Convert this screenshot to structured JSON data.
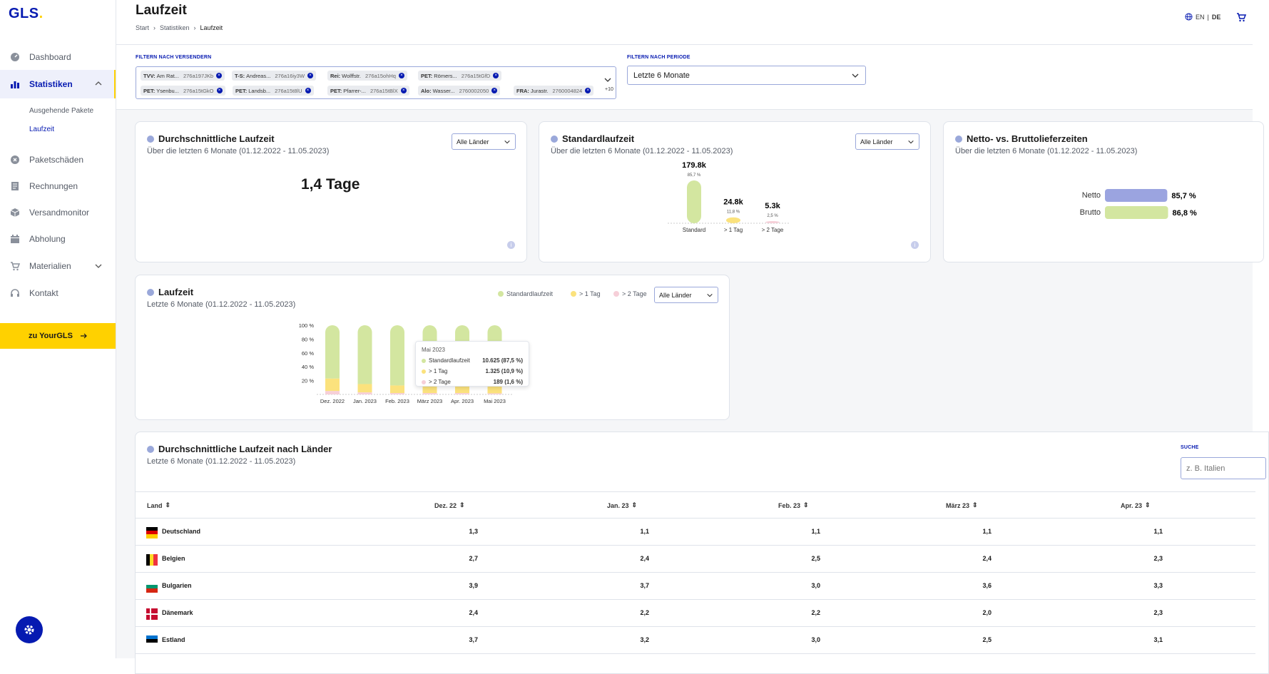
{
  "app": {
    "logo": "GLS",
    "page_title": "Laufzeit"
  },
  "breadcrumb": [
    "Start",
    "Statistiken",
    "Laufzeit"
  ],
  "header": {
    "lang_en": "EN",
    "lang_sep": "|",
    "lang_de": "DE"
  },
  "sidebar": {
    "items": [
      {
        "label": "Dashboard",
        "icon": "dashboard-icon"
      },
      {
        "label": "Statistiken",
        "icon": "bar-chart-icon"
      },
      {
        "label": "Paketschäden",
        "icon": "damage-icon"
      },
      {
        "label": "Rechnungen",
        "icon": "invoice-icon"
      },
      {
        "label": "Versandmonitor",
        "icon": "package-icon"
      },
      {
        "label": "Abholung",
        "icon": "calendar-icon"
      },
      {
        "label": "Materialien",
        "icon": "cart-icon"
      },
      {
        "label": "Kontakt",
        "icon": "headset-icon"
      }
    ],
    "subitems": [
      "Ausgehende Pakete",
      "Laufzeit"
    ],
    "cta": "zu YourGLS"
  },
  "filters": {
    "sender_label": "FILTERN NACH VERSENDERN",
    "period_label": "FILTERN NACH PERIODE",
    "period_value": "Letzte 6 Monate",
    "more": "+10",
    "chips": [
      {
        "prefix": "TVV:",
        "name": "Am Rat...",
        "id": "276a197JKb"
      },
      {
        "prefix": "T-S:",
        "name": "Andreas...",
        "id": "276a16iy3W"
      },
      {
        "prefix": "Rei:",
        "name": "Wolffstr.",
        "id": "276a15ohHq"
      },
      {
        "prefix": "PET:",
        "name": "Römers...",
        "id": "276a15tGfD"
      },
      {
        "prefix": "PET:",
        "name": "Ysenbu...",
        "id": "276a15tGkO"
      },
      {
        "prefix": "PET:",
        "name": "Landsb...",
        "id": "276a15t8lU"
      },
      {
        "prefix": "PET:",
        "name": "Pfarrer-...",
        "id": "276a15tBlX"
      },
      {
        "prefix": "Alo:",
        "name": "Wasser...",
        "id": "2760002050"
      },
      {
        "prefix": "FRA:",
        "name": "Jurastr.",
        "id": "2760004824"
      }
    ]
  },
  "cards": {
    "avg": {
      "title": "Durchschnittliche Laufzeit",
      "subtitle": "Über die letzten 6 Monate (01.12.2022 - 11.05.2023)",
      "select": "Alle Länder",
      "value": "1,4 Tage"
    },
    "std": {
      "title": "Standardlaufzeit",
      "subtitle": "Über die letzten 6 Monate (01.12.2022 - 11.05.2023)",
      "select": "Alle Länder"
    },
    "net": {
      "title": "Netto- vs. Bruttolieferzeiten",
      "subtitle": "Über die letzten 6 Monate (01.12.2022 - 11.05.2023)"
    },
    "lz": {
      "title": "Laufzeit",
      "subtitle": "Letzte 6 Monate (01.12.2022 - 11.05.2023)",
      "select": "Alle Länder"
    },
    "table": {
      "title": "Durchschnittliche Laufzeit nach Länder",
      "subtitle": "Letzte 6 Monate (01.12.2022 - 11.05.2023)",
      "search_label": "SUCHE",
      "search_placeholder": "z. B. Italien"
    }
  },
  "colors": {
    "blue": "#061ab1",
    "yellow": "#ffd100",
    "green": "#d3e6a0",
    "lightyellow": "#fbe27d",
    "pink": "#f6cfd8",
    "netto": "#9ba4e0"
  },
  "chart_data": [
    {
      "type": "bar",
      "title": "Standardlaufzeit",
      "categories": [
        "Standard",
        "> 1 Tag",
        "> 2 Tage"
      ],
      "values": [
        179.8,
        24.8,
        5.3
      ],
      "value_labels": [
        "179.8k",
        "24.8k",
        "5.3k"
      ],
      "percent_labels": [
        "85,7 %",
        "11,8 %",
        "2,5 %"
      ]
    },
    {
      "type": "bar",
      "title": "Netto- vs. Bruttolieferzeiten",
      "categories": [
        "Netto",
        "Brutto"
      ],
      "values": [
        85.7,
        86.8
      ],
      "value_labels": [
        "85,7 %",
        "86,8 %"
      ]
    },
    {
      "type": "bar",
      "title": "Laufzeit",
      "stacked": true,
      "categories": [
        "Dez. 2022",
        "Jan. 2023",
        "Feb. 2023",
        "März 2023",
        "Apr. 2023",
        "Mai 2023"
      ],
      "yticks": [
        "100 %",
        "80 %",
        "60 %",
        "40 %",
        "20 %"
      ],
      "ylim": [
        0,
        100
      ],
      "series": [
        {
          "name": "Standardlaufzeit",
          "values": [
            77,
            85,
            87,
            87,
            87,
            87.5
          ]
        },
        {
          "name": "> 1 Tag",
          "values": [
            18,
            12,
            11,
            11,
            11,
            10.9
          ]
        },
        {
          "name": "> 2 Tage",
          "values": [
            5,
            3,
            2,
            2,
            2,
            1.6
          ]
        }
      ],
      "tooltip": {
        "title": "Mai 2023",
        "rows": [
          {
            "name": "Standardlaufzeit",
            "value": "10.625 (87,5 %)"
          },
          {
            "name": "> 1 Tag",
            "value": "1.325 (10,9 %)"
          },
          {
            "name": "> 2 Tage",
            "value": "189 (1,6 %)"
          }
        ]
      }
    }
  ],
  "table": {
    "headers": [
      "Land",
      "Dez. 22",
      "Jan. 23",
      "Feb. 23",
      "März 23",
      "Apr. 23"
    ],
    "rows": [
      {
        "country": "Deutschland",
        "values": [
          "1,3",
          "1,1",
          "1,1",
          "1,1",
          "1,1"
        ]
      },
      {
        "country": "Belgien",
        "values": [
          "2,7",
          "2,4",
          "2,5",
          "2,4",
          "2,3"
        ]
      },
      {
        "country": "Bulgarien",
        "values": [
          "3,9",
          "3,7",
          "3,0",
          "3,6",
          "3,3"
        ]
      },
      {
        "country": "Dänemark",
        "values": [
          "2,4",
          "2,2",
          "2,2",
          "2,0",
          "2,3"
        ]
      },
      {
        "country": "Estland",
        "values": [
          "3,7",
          "3,2",
          "3,0",
          "2,5",
          "3,1"
        ]
      }
    ]
  }
}
